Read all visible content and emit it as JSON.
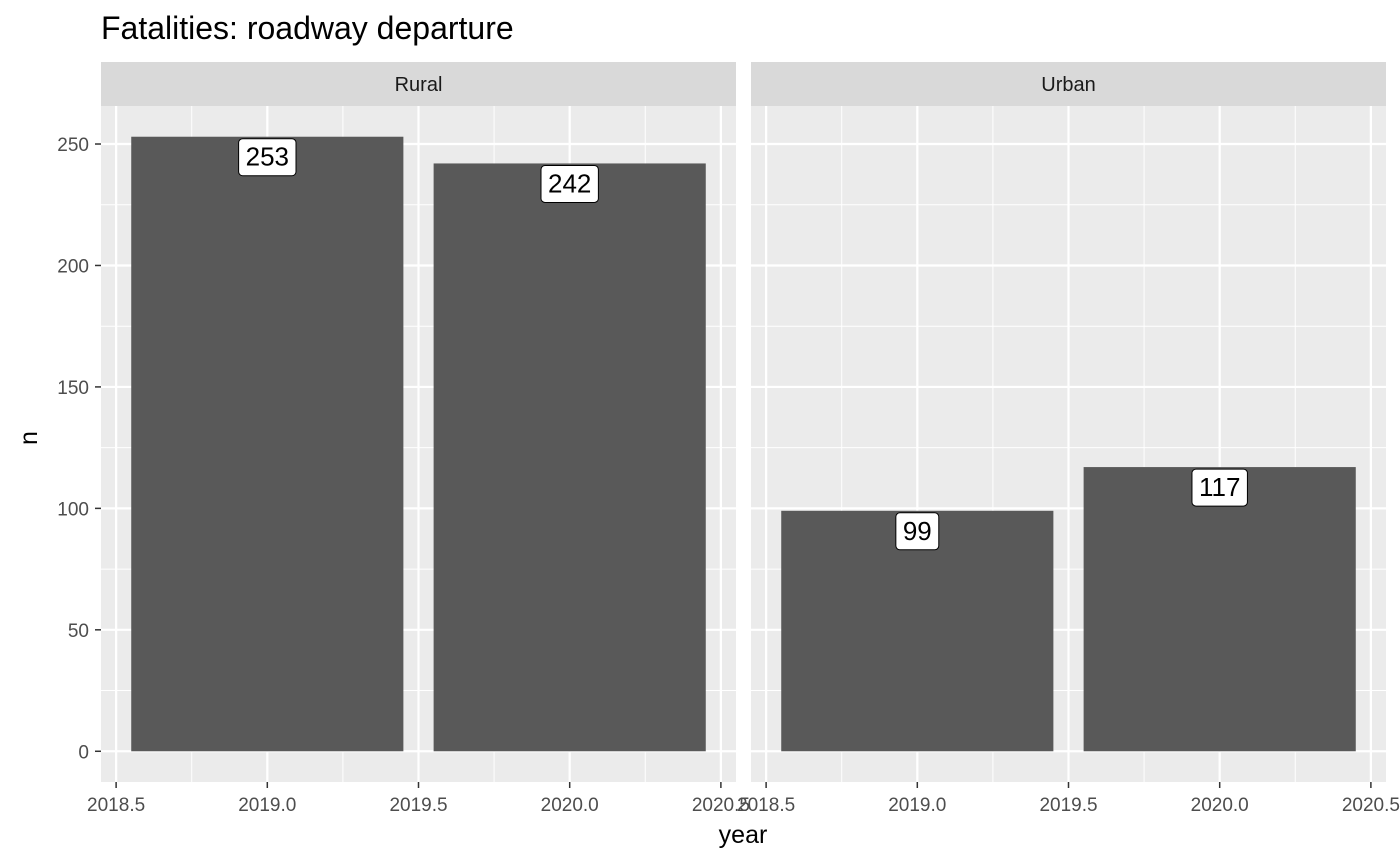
{
  "chart_data": {
    "type": "bar",
    "title": "Fatalities: roadway departure",
    "xlabel": "year",
    "ylabel": "n",
    "xlim": [
      2018.45,
      2020.55
    ],
    "ylim": [
      -12.65,
      265.65
    ],
    "x_ticks": [
      "2018.5",
      "2019.0",
      "2019.5",
      "2020.0",
      "2020.5"
    ],
    "x_tick_values": [
      2018.5,
      2019.0,
      2019.5,
      2020.0,
      2020.5
    ],
    "y_ticks": [
      "0",
      "50",
      "100",
      "150",
      "200",
      "250"
    ],
    "y_tick_values": [
      0,
      50,
      100,
      150,
      200,
      250
    ],
    "bar_width": 0.9,
    "grid": true,
    "bar_color": "#595959",
    "panel_background": "#ebebeb",
    "strip_background": "#d9d9d9",
    "grid_color": "#ffffff",
    "panels": [
      {
        "label": "Rural",
        "bars": [
          {
            "x": 2019,
            "value": 253,
            "label": "253"
          },
          {
            "x": 2020,
            "value": 242,
            "label": "242"
          }
        ]
      },
      {
        "label": "Urban",
        "bars": [
          {
            "x": 2019,
            "value": 99,
            "label": "99"
          },
          {
            "x": 2020,
            "value": 117,
            "label": "117"
          }
        ]
      }
    ]
  }
}
